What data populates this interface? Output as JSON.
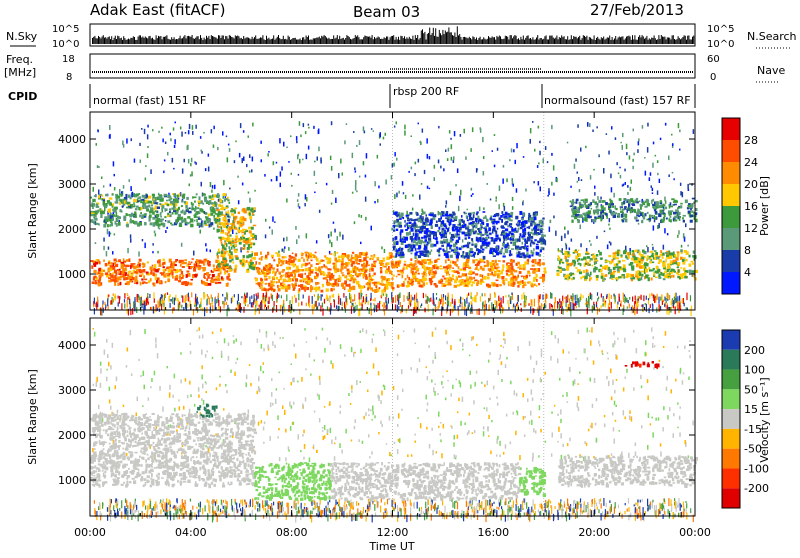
{
  "header": {
    "station": "Adak East (fitACF)",
    "beam": "Beam 03",
    "date": "27/Feb/2013"
  },
  "strip_labels": {
    "nsky": "N.Sky",
    "nsky_ticks": [
      "10^5",
      "10^0"
    ],
    "nsearch": "N.Search",
    "freq_line1": "Freq.",
    "freq_line2": "[MHz]",
    "freq_ticks": [
      "18",
      "8"
    ],
    "nave": "Nave",
    "nave_ticks": [
      "60",
      "0"
    ],
    "cpid": "CPID"
  },
  "modes": [
    {
      "label": "normal (fast) 151 RF",
      "start_hour": 0,
      "end_hour": 12
    },
    {
      "label": "rbsp 200 RF",
      "start_hour": 12,
      "end_hour": 18
    },
    {
      "label": "normalsound (fast) 157 RF",
      "start_hour": 18,
      "end_hour": 24
    }
  ],
  "axes": {
    "ylabel": "Slant Range [km]",
    "yticks": [
      1000,
      2000,
      3000,
      4000
    ],
    "ylim": [
      200,
      4600
    ],
    "xlabel": "Time UT",
    "xticks": [
      "00:00",
      "04:00",
      "08:00",
      "12:00",
      "16:00",
      "20:00",
      "00:00"
    ],
    "xlim_hours": [
      0,
      24
    ]
  },
  "power_scale": {
    "label": "Power [dB]",
    "ticks": [
      "28",
      "24",
      "20",
      "16",
      "12",
      "8",
      "4"
    ],
    "colors": [
      "#e60000",
      "#ff4d00",
      "#ff8c00",
      "#ffc800",
      "#3c9a3c",
      "#5a9a78",
      "#1a3ca8",
      "#0018ff"
    ]
  },
  "velocity_scale": {
    "label": "Velocity [m s⁻¹]",
    "ticks": [
      "200",
      "100",
      "50",
      "15",
      "-15",
      "-50",
      "-100",
      "-200"
    ],
    "colors": [
      "#1a3cb0",
      "#2a7a5a",
      "#46a040",
      "#7ed860",
      "#c8c8c4",
      "#ffb400",
      "#ff7800",
      "#ff3000",
      "#e00000"
    ]
  },
  "chart_data": [
    {
      "type": "heatmap",
      "title": "Power",
      "x_unit": "hours UT",
      "y_unit": "km",
      "regions": [
        {
          "x": [
            0.0,
            5.5
          ],
          "y": [
            800,
            1350
          ],
          "value_db": 24
        },
        {
          "x": [
            0.0,
            5.5
          ],
          "y": [
            2100,
            2800
          ],
          "value_db": 12
        },
        {
          "x": [
            5.0,
            6.5
          ],
          "y": [
            1100,
            2500
          ],
          "value_db": 18
        },
        {
          "x": [
            6.5,
            12.0
          ],
          "y": [
            650,
            1500
          ],
          "value_db": 22
        },
        {
          "x": [
            12.0,
            18.0
          ],
          "y": [
            750,
            1350
          ],
          "value_db": 22
        },
        {
          "x": [
            12.0,
            18.0
          ],
          "y": [
            1400,
            2400
          ],
          "value_db": 6
        },
        {
          "x": [
            18.5,
            24.0
          ],
          "y": [
            900,
            1550
          ],
          "value_db": 16
        },
        {
          "x": [
            19.0,
            24.0
          ],
          "y": [
            2200,
            2700
          ],
          "value_db": 10
        }
      ]
    },
    {
      "type": "heatmap",
      "title": "Velocity",
      "x_unit": "hours UT",
      "y_unit": "km",
      "regions": [
        {
          "x": [
            0.0,
            6.5
          ],
          "y": [
            900,
            2500
          ],
          "value_ms": 0
        },
        {
          "x": [
            4.2,
            5.0
          ],
          "y": [
            2450,
            2700
          ],
          "value_ms": 120
        },
        {
          "x": [
            6.5,
            9.5
          ],
          "y": [
            600,
            1400
          ],
          "value_ms": 40
        },
        {
          "x": [
            9.5,
            17.0
          ],
          "y": [
            600,
            1400
          ],
          "value_ms": 0
        },
        {
          "x": [
            17.0,
            18.0
          ],
          "y": [
            700,
            1300
          ],
          "value_ms": 40
        },
        {
          "x": [
            18.5,
            24.0
          ],
          "y": [
            900,
            1550
          ],
          "value_ms": 0
        },
        {
          "x": [
            21.0,
            22.5
          ],
          "y": [
            3550,
            3650
          ],
          "value_ms": -200
        }
      ]
    }
  ]
}
